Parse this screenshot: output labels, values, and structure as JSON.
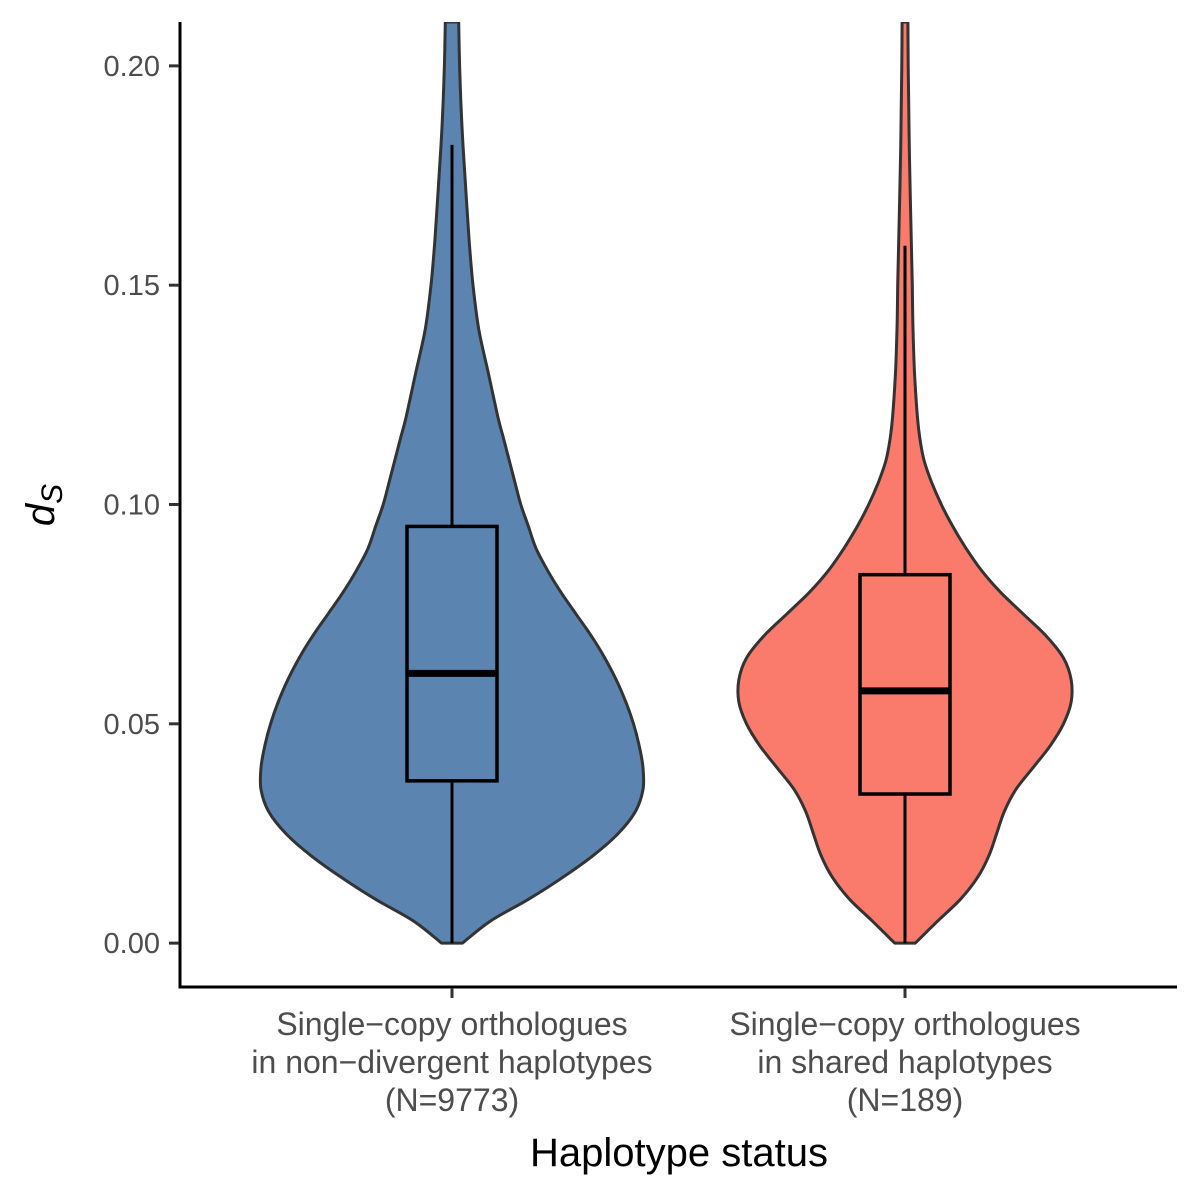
{
  "chart_data": {
    "type": "violin",
    "xlabel": "Haplotype status",
    "ylabel_main": "d",
    "ylabel_sub": "S",
    "ylim": [
      -0.01,
      0.21
    ],
    "yticks": [
      "0.00",
      "0.05",
      "0.10",
      "0.15",
      "0.20"
    ],
    "grid": false,
    "legend": "none",
    "groups": [
      {
        "label_lines": [
          "Single−copy orthologues",
          "in non−divergent haplotypes",
          "(N=9773)"
        ],
        "color": "#5b84b1",
        "box": {
          "q1": 0.037,
          "median": 0.0615,
          "q3": 0.095,
          "whisker_low": 0.0,
          "whisker_high": 0.182
        },
        "density": [
          [
            0.0,
            0.055
          ],
          [
            0.005,
            0.2
          ],
          [
            0.01,
            0.4
          ],
          [
            0.015,
            0.58
          ],
          [
            0.02,
            0.74
          ],
          [
            0.025,
            0.87
          ],
          [
            0.03,
            0.96
          ],
          [
            0.035,
            1.0
          ],
          [
            0.04,
            1.0
          ],
          [
            0.045,
            0.98
          ],
          [
            0.05,
            0.95
          ],
          [
            0.055,
            0.91
          ],
          [
            0.06,
            0.86
          ],
          [
            0.065,
            0.8
          ],
          [
            0.07,
            0.73
          ],
          [
            0.075,
            0.65
          ],
          [
            0.08,
            0.57
          ],
          [
            0.085,
            0.5
          ],
          [
            0.09,
            0.44
          ],
          [
            0.095,
            0.4
          ],
          [
            0.1,
            0.36
          ],
          [
            0.105,
            0.33
          ],
          [
            0.11,
            0.3
          ],
          [
            0.115,
            0.27
          ],
          [
            0.12,
            0.24
          ],
          [
            0.13,
            0.19
          ],
          [
            0.14,
            0.14
          ],
          [
            0.15,
            0.11
          ],
          [
            0.16,
            0.09
          ],
          [
            0.17,
            0.075
          ],
          [
            0.18,
            0.06
          ],
          [
            0.19,
            0.048
          ],
          [
            0.2,
            0.04
          ],
          [
            0.21,
            0.035
          ]
        ]
      },
      {
        "label_lines": [
          "Single−copy orthologues",
          "in shared haplotypes",
          "(N=189)"
        ],
        "color": "#fa7a6b",
        "box": {
          "q1": 0.034,
          "median": 0.0575,
          "q3": 0.084,
          "whisker_low": 0.0,
          "whisker_high": 0.159
        },
        "density": [
          [
            0.0,
            0.054
          ],
          [
            0.005,
            0.17
          ],
          [
            0.01,
            0.29
          ],
          [
            0.015,
            0.38
          ],
          [
            0.02,
            0.44
          ],
          [
            0.025,
            0.48
          ],
          [
            0.03,
            0.52
          ],
          [
            0.035,
            0.58
          ],
          [
            0.04,
            0.67
          ],
          [
            0.045,
            0.76
          ],
          [
            0.05,
            0.83
          ],
          [
            0.055,
            0.87
          ],
          [
            0.06,
            0.87
          ],
          [
            0.065,
            0.83
          ],
          [
            0.07,
            0.74
          ],
          [
            0.075,
            0.62
          ],
          [
            0.08,
            0.5
          ],
          [
            0.085,
            0.4
          ],
          [
            0.09,
            0.32
          ],
          [
            0.095,
            0.25
          ],
          [
            0.1,
            0.19
          ],
          [
            0.105,
            0.14
          ],
          [
            0.11,
            0.1
          ],
          [
            0.115,
            0.078
          ],
          [
            0.12,
            0.065
          ],
          [
            0.13,
            0.05
          ],
          [
            0.14,
            0.042
          ],
          [
            0.15,
            0.038
          ],
          [
            0.16,
            0.033
          ],
          [
            0.17,
            0.028
          ],
          [
            0.18,
            0.023
          ],
          [
            0.19,
            0.02
          ],
          [
            0.2,
            0.017
          ],
          [
            0.21,
            0.015
          ]
        ]
      }
    ]
  }
}
